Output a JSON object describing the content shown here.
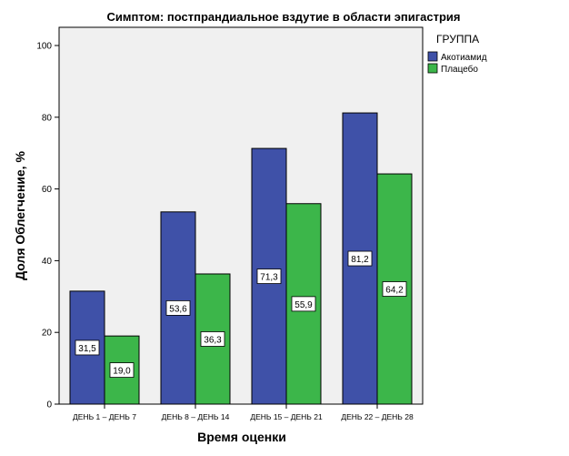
{
  "chart_data": {
    "type": "bar",
    "title": "Симптом: постпрандиальное вздутие в области эпигастрия",
    "xlabel": "Время оценки",
    "ylabel": "Доля Облегчение, %",
    "ylim": [
      0,
      100
    ],
    "yticks": [
      0,
      20,
      40,
      60,
      80,
      100
    ],
    "grid": false,
    "legend": {
      "title": "ГРУППА",
      "placement": "right"
    },
    "categories": [
      "ДЕНЬ 1 – ДЕНЬ 7",
      "ДЕНЬ 8 – ДЕНЬ 14",
      "ДЕНЬ 15 – ДЕНЬ 21",
      "ДЕНЬ 22 – ДЕНЬ 28"
    ],
    "series": [
      {
        "name": "Акотиамид",
        "color": "#3f51a8",
        "values": [
          31.5,
          53.6,
          71.3,
          81.2
        ],
        "labels": [
          "31,5",
          "53,6",
          "71,3",
          "81,2"
        ]
      },
      {
        "name": "Плацебо",
        "color": "#3cb64a",
        "values": [
          19.0,
          36.3,
          55.9,
          64.2
        ],
        "labels": [
          "19,0",
          "36,3",
          "55,9",
          "64,2"
        ]
      }
    ],
    "plot_background": "#f0f0f0"
  }
}
